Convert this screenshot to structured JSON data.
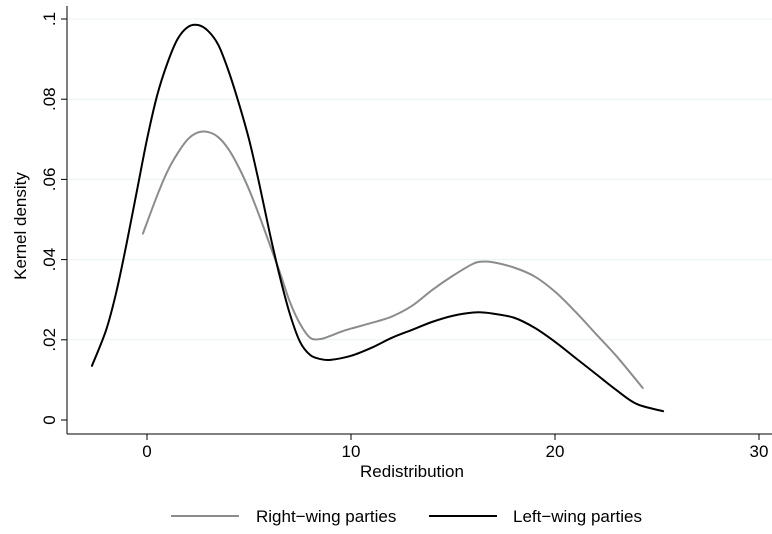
{
  "chart_data": {
    "type": "line",
    "title": "",
    "xlabel": "Redistribution",
    "ylabel": "Kernel density",
    "xlim": [
      -2.7,
      30
    ],
    "ylim": [
      0,
      0.1
    ],
    "xticks": [
      0,
      10,
      20,
      30
    ],
    "xtick_labels": [
      "0",
      "10",
      "20",
      "30"
    ],
    "yticks": [
      0,
      0.02,
      0.04,
      0.06,
      0.08,
      0.1
    ],
    "ytick_labels": [
      "0",
      ".02",
      ".04",
      ".06",
      ".08",
      ".1"
    ],
    "grid": true,
    "legend_position": "bottom",
    "series": [
      {
        "name": "Right−wing parties",
        "color": "#8c8c8c",
        "x": [
          -0.2,
          0.5,
          1.0,
          1.5,
          2.0,
          2.5,
          3.0,
          3.5,
          4.0,
          4.5,
          5.0,
          5.5,
          6.0,
          6.5,
          7.0,
          7.5,
          8.0,
          8.5,
          9.0,
          9.5,
          10.0,
          11.0,
          12.0,
          13.0,
          14.0,
          15.0,
          16.0,
          16.5,
          17.0,
          18.0,
          19.0,
          20.0,
          21.0,
          22.0,
          23.0,
          24.3
        ],
        "values": [
          0.0465,
          0.056,
          0.062,
          0.0665,
          0.07,
          0.0717,
          0.0718,
          0.0705,
          0.0675,
          0.063,
          0.0575,
          0.051,
          0.044,
          0.037,
          0.0295,
          0.024,
          0.0205,
          0.0202,
          0.021,
          0.022,
          0.0228,
          0.0242,
          0.0258,
          0.0285,
          0.0325,
          0.036,
          0.039,
          0.0395,
          0.0393,
          0.038,
          0.0358,
          0.032,
          0.027,
          0.0215,
          0.016,
          0.008
        ]
      },
      {
        "name": "Left−wing parties",
        "color": "#000000",
        "x": [
          -2.7,
          -2.0,
          -1.5,
          -1.0,
          -0.5,
          0.0,
          0.5,
          1.0,
          1.5,
          2.0,
          2.5,
          3.0,
          3.5,
          4.0,
          4.5,
          5.0,
          5.5,
          6.0,
          6.5,
          7.0,
          7.5,
          8.0,
          8.5,
          9.0,
          10.0,
          11.0,
          12.0,
          13.0,
          14.0,
          15.0,
          16.0,
          16.5,
          17.0,
          18.0,
          19.0,
          20.0,
          21.0,
          22.0,
          23.0,
          24.0,
          25.3
        ],
        "values": [
          0.0135,
          0.0225,
          0.032,
          0.044,
          0.057,
          0.07,
          0.081,
          0.089,
          0.095,
          0.098,
          0.0985,
          0.097,
          0.0935,
          0.087,
          0.079,
          0.07,
          0.059,
          0.047,
          0.036,
          0.0265,
          0.0195,
          0.0162,
          0.0152,
          0.015,
          0.016,
          0.018,
          0.0205,
          0.0225,
          0.0245,
          0.026,
          0.0268,
          0.0268,
          0.0265,
          0.0255,
          0.023,
          0.0195,
          0.0155,
          0.0115,
          0.0075,
          0.004,
          0.0022
        ]
      }
    ]
  }
}
